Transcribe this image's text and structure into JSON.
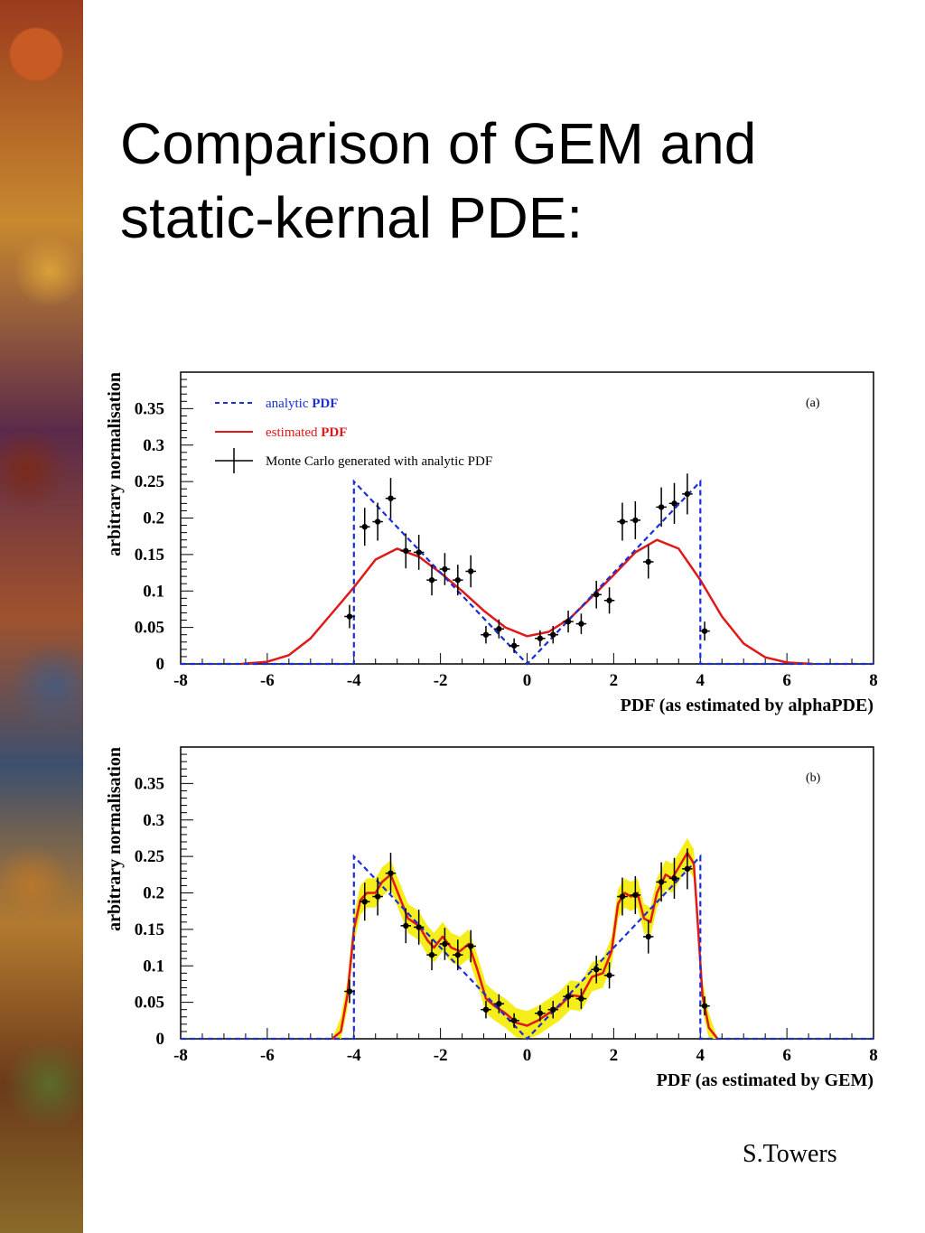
{
  "title": "Comparison of GEM and static-kernal PDE:",
  "author": "S.Towers",
  "colors": {
    "analytic": "#1a2fd6",
    "estimated": "#e01818",
    "data": "#000000",
    "band": "#f5ee1a"
  },
  "chart_data": [
    {
      "type": "line",
      "panel_label": "(a)",
      "xlabel": "PDF (as estimated by alphaPDE)",
      "ylabel": "arbitrary normalisation",
      "xlim": [
        -8,
        8
      ],
      "ylim": [
        0,
        0.4
      ],
      "x_ticks": [
        "-8",
        "-6",
        "-4",
        "-2",
        "0",
        "2",
        "4",
        "6",
        "8"
      ],
      "y_ticks": [
        "0",
        "0.05",
        "0.1",
        "0.15",
        "0.2",
        "0.25",
        "0.3",
        "0.35"
      ],
      "legend": [
        {
          "key": "analytic",
          "label_plain": "analytic ",
          "label_bold": "PDF"
        },
        {
          "key": "estimated",
          "label_plain": "estimated ",
          "label_bold": "PDF"
        },
        {
          "key": "data",
          "label_plain": "Monte Carlo generated with analytic PDF",
          "label_bold": ""
        }
      ],
      "series": [
        {
          "name": "analytic PDF",
          "style": "dashed",
          "color_key": "analytic",
          "points": [
            [
              -8,
              0
            ],
            [
              -4,
              0
            ],
            [
              -4,
              0.25
            ],
            [
              0,
              0
            ],
            [
              4,
              0.25
            ],
            [
              4,
              0
            ],
            [
              8,
              0
            ]
          ]
        },
        {
          "name": "estimated PDF",
          "style": "solid",
          "color_key": "estimated",
          "points": [
            [
              -6.6,
              0
            ],
            [
              -6,
              0.003
            ],
            [
              -5.5,
              0.012
            ],
            [
              -5,
              0.035
            ],
            [
              -4.5,
              0.07
            ],
            [
              -4,
              0.105
            ],
            [
              -3.5,
              0.143
            ],
            [
              -3,
              0.158
            ],
            [
              -2.5,
              0.147
            ],
            [
              -2,
              0.125
            ],
            [
              -1.5,
              0.1
            ],
            [
              -1,
              0.073
            ],
            [
              -0.5,
              0.05
            ],
            [
              0,
              0.038
            ],
            [
              0.5,
              0.044
            ],
            [
              1,
              0.063
            ],
            [
              1.5,
              0.092
            ],
            [
              2,
              0.122
            ],
            [
              2.5,
              0.153
            ],
            [
              3,
              0.17
            ],
            [
              3.5,
              0.158
            ],
            [
              4,
              0.115
            ],
            [
              4.5,
              0.065
            ],
            [
              5,
              0.028
            ],
            [
              5.5,
              0.009
            ],
            [
              6,
              0.002
            ],
            [
              6.6,
              0
            ]
          ]
        }
      ],
      "data_points": [
        {
          "x": -4.1,
          "y": 0.065,
          "err": 0.016
        },
        {
          "x": -3.75,
          "y": 0.188,
          "err": 0.026
        },
        {
          "x": -3.45,
          "y": 0.195,
          "err": 0.026
        },
        {
          "x": -3.15,
          "y": 0.227,
          "err": 0.028
        },
        {
          "x": -2.8,
          "y": 0.155,
          "err": 0.024
        },
        {
          "x": -2.5,
          "y": 0.153,
          "err": 0.024
        },
        {
          "x": -2.2,
          "y": 0.115,
          "err": 0.021
        },
        {
          "x": -1.9,
          "y": 0.13,
          "err": 0.022
        },
        {
          "x": -1.6,
          "y": 0.115,
          "err": 0.021
        },
        {
          "x": -1.3,
          "y": 0.127,
          "err": 0.022
        },
        {
          "x": -0.95,
          "y": 0.04,
          "err": 0.012
        },
        {
          "x": -0.65,
          "y": 0.048,
          "err": 0.013
        },
        {
          "x": -0.3,
          "y": 0.025,
          "err": 0.01
        },
        {
          "x": 0.3,
          "y": 0.035,
          "err": 0.011
        },
        {
          "x": 0.6,
          "y": 0.04,
          "err": 0.012
        },
        {
          "x": 0.95,
          "y": 0.058,
          "err": 0.015
        },
        {
          "x": 1.25,
          "y": 0.055,
          "err": 0.014
        },
        {
          "x": 1.6,
          "y": 0.095,
          "err": 0.019
        },
        {
          "x": 1.9,
          "y": 0.087,
          "err": 0.018
        },
        {
          "x": 2.2,
          "y": 0.195,
          "err": 0.026
        },
        {
          "x": 2.5,
          "y": 0.197,
          "err": 0.026
        },
        {
          "x": 2.8,
          "y": 0.14,
          "err": 0.023
        },
        {
          "x": 3.1,
          "y": 0.215,
          "err": 0.027
        },
        {
          "x": 3.4,
          "y": 0.22,
          "err": 0.028
        },
        {
          "x": 3.7,
          "y": 0.233,
          "err": 0.028
        },
        {
          "x": 4.1,
          "y": 0.045,
          "err": 0.013
        }
      ]
    },
    {
      "type": "line",
      "panel_label": "(b)",
      "xlabel": "PDF (as estimated by GEM)",
      "ylabel": "arbitrary normalisation",
      "xlim": [
        -8,
        8
      ],
      "ylim": [
        0,
        0.4
      ],
      "x_ticks": [
        "-8",
        "-6",
        "-4",
        "-2",
        "0",
        "2",
        "4",
        "6",
        "8"
      ],
      "y_ticks": [
        "0",
        "0.05",
        "0.1",
        "0.15",
        "0.2",
        "0.25",
        "0.3",
        "0.35"
      ],
      "band_halfwidth": 0.02,
      "series": [
        {
          "name": "analytic PDF",
          "style": "dashed",
          "color_key": "analytic",
          "points": [
            [
              -8,
              0
            ],
            [
              -4,
              0
            ],
            [
              -4,
              0.25
            ],
            [
              0,
              0
            ],
            [
              4,
              0.25
            ],
            [
              4,
              0
            ],
            [
              8,
              0
            ]
          ]
        },
        {
          "name": "estimated PDF",
          "style": "solid",
          "color_key": "estimated",
          "points": [
            [
              -4.5,
              0
            ],
            [
              -4.3,
              0.01
            ],
            [
              -4.15,
              0.06
            ],
            [
              -4.0,
              0.15
            ],
            [
              -3.85,
              0.19
            ],
            [
              -3.7,
              0.2
            ],
            [
              -3.5,
              0.2
            ],
            [
              -3.35,
              0.215
            ],
            [
              -3.15,
              0.225
            ],
            [
              -2.95,
              0.195
            ],
            [
              -2.75,
              0.165
            ],
            [
              -2.5,
              0.155
            ],
            [
              -2.3,
              0.135
            ],
            [
              -2.15,
              0.125
            ],
            [
              -1.95,
              0.14
            ],
            [
              -1.75,
              0.125
            ],
            [
              -1.55,
              0.12
            ],
            [
              -1.35,
              0.13
            ],
            [
              -1.15,
              0.095
            ],
            [
              -0.95,
              0.055
            ],
            [
              -0.75,
              0.045
            ],
            [
              -0.5,
              0.035
            ],
            [
              -0.25,
              0.022
            ],
            [
              0,
              0.018
            ],
            [
              0.25,
              0.025
            ],
            [
              0.5,
              0.035
            ],
            [
              0.75,
              0.045
            ],
            [
              1.0,
              0.06
            ],
            [
              1.25,
              0.058
            ],
            [
              1.5,
              0.085
            ],
            [
              1.75,
              0.09
            ],
            [
              1.95,
              0.12
            ],
            [
              2.1,
              0.185
            ],
            [
              2.25,
              0.2
            ],
            [
              2.4,
              0.195
            ],
            [
              2.55,
              0.2
            ],
            [
              2.7,
              0.165
            ],
            [
              2.85,
              0.16
            ],
            [
              3.0,
              0.2
            ],
            [
              3.2,
              0.225
            ],
            [
              3.35,
              0.22
            ],
            [
              3.5,
              0.235
            ],
            [
              3.7,
              0.255
            ],
            [
              3.85,
              0.24
            ],
            [
              3.95,
              0.15
            ],
            [
              4.05,
              0.06
            ],
            [
              4.2,
              0.015
            ],
            [
              4.4,
              0
            ]
          ]
        }
      ],
      "data_points": [
        {
          "x": -4.1,
          "y": 0.065,
          "err": 0.016
        },
        {
          "x": -3.75,
          "y": 0.188,
          "err": 0.026
        },
        {
          "x": -3.45,
          "y": 0.195,
          "err": 0.026
        },
        {
          "x": -3.15,
          "y": 0.227,
          "err": 0.028
        },
        {
          "x": -2.8,
          "y": 0.155,
          "err": 0.024
        },
        {
          "x": -2.5,
          "y": 0.153,
          "err": 0.024
        },
        {
          "x": -2.2,
          "y": 0.115,
          "err": 0.021
        },
        {
          "x": -1.9,
          "y": 0.13,
          "err": 0.022
        },
        {
          "x": -1.6,
          "y": 0.115,
          "err": 0.021
        },
        {
          "x": -1.3,
          "y": 0.127,
          "err": 0.022
        },
        {
          "x": -0.95,
          "y": 0.04,
          "err": 0.012
        },
        {
          "x": -0.65,
          "y": 0.048,
          "err": 0.013
        },
        {
          "x": -0.3,
          "y": 0.025,
          "err": 0.01
        },
        {
          "x": 0.3,
          "y": 0.035,
          "err": 0.011
        },
        {
          "x": 0.6,
          "y": 0.04,
          "err": 0.012
        },
        {
          "x": 0.95,
          "y": 0.058,
          "err": 0.015
        },
        {
          "x": 1.25,
          "y": 0.055,
          "err": 0.014
        },
        {
          "x": 1.6,
          "y": 0.095,
          "err": 0.019
        },
        {
          "x": 1.9,
          "y": 0.087,
          "err": 0.018
        },
        {
          "x": 2.2,
          "y": 0.195,
          "err": 0.026
        },
        {
          "x": 2.5,
          "y": 0.197,
          "err": 0.026
        },
        {
          "x": 2.8,
          "y": 0.14,
          "err": 0.023
        },
        {
          "x": 3.1,
          "y": 0.215,
          "err": 0.027
        },
        {
          "x": 3.4,
          "y": 0.22,
          "err": 0.028
        },
        {
          "x": 3.7,
          "y": 0.233,
          "err": 0.028
        },
        {
          "x": 4.1,
          "y": 0.045,
          "err": 0.013
        }
      ]
    }
  ]
}
